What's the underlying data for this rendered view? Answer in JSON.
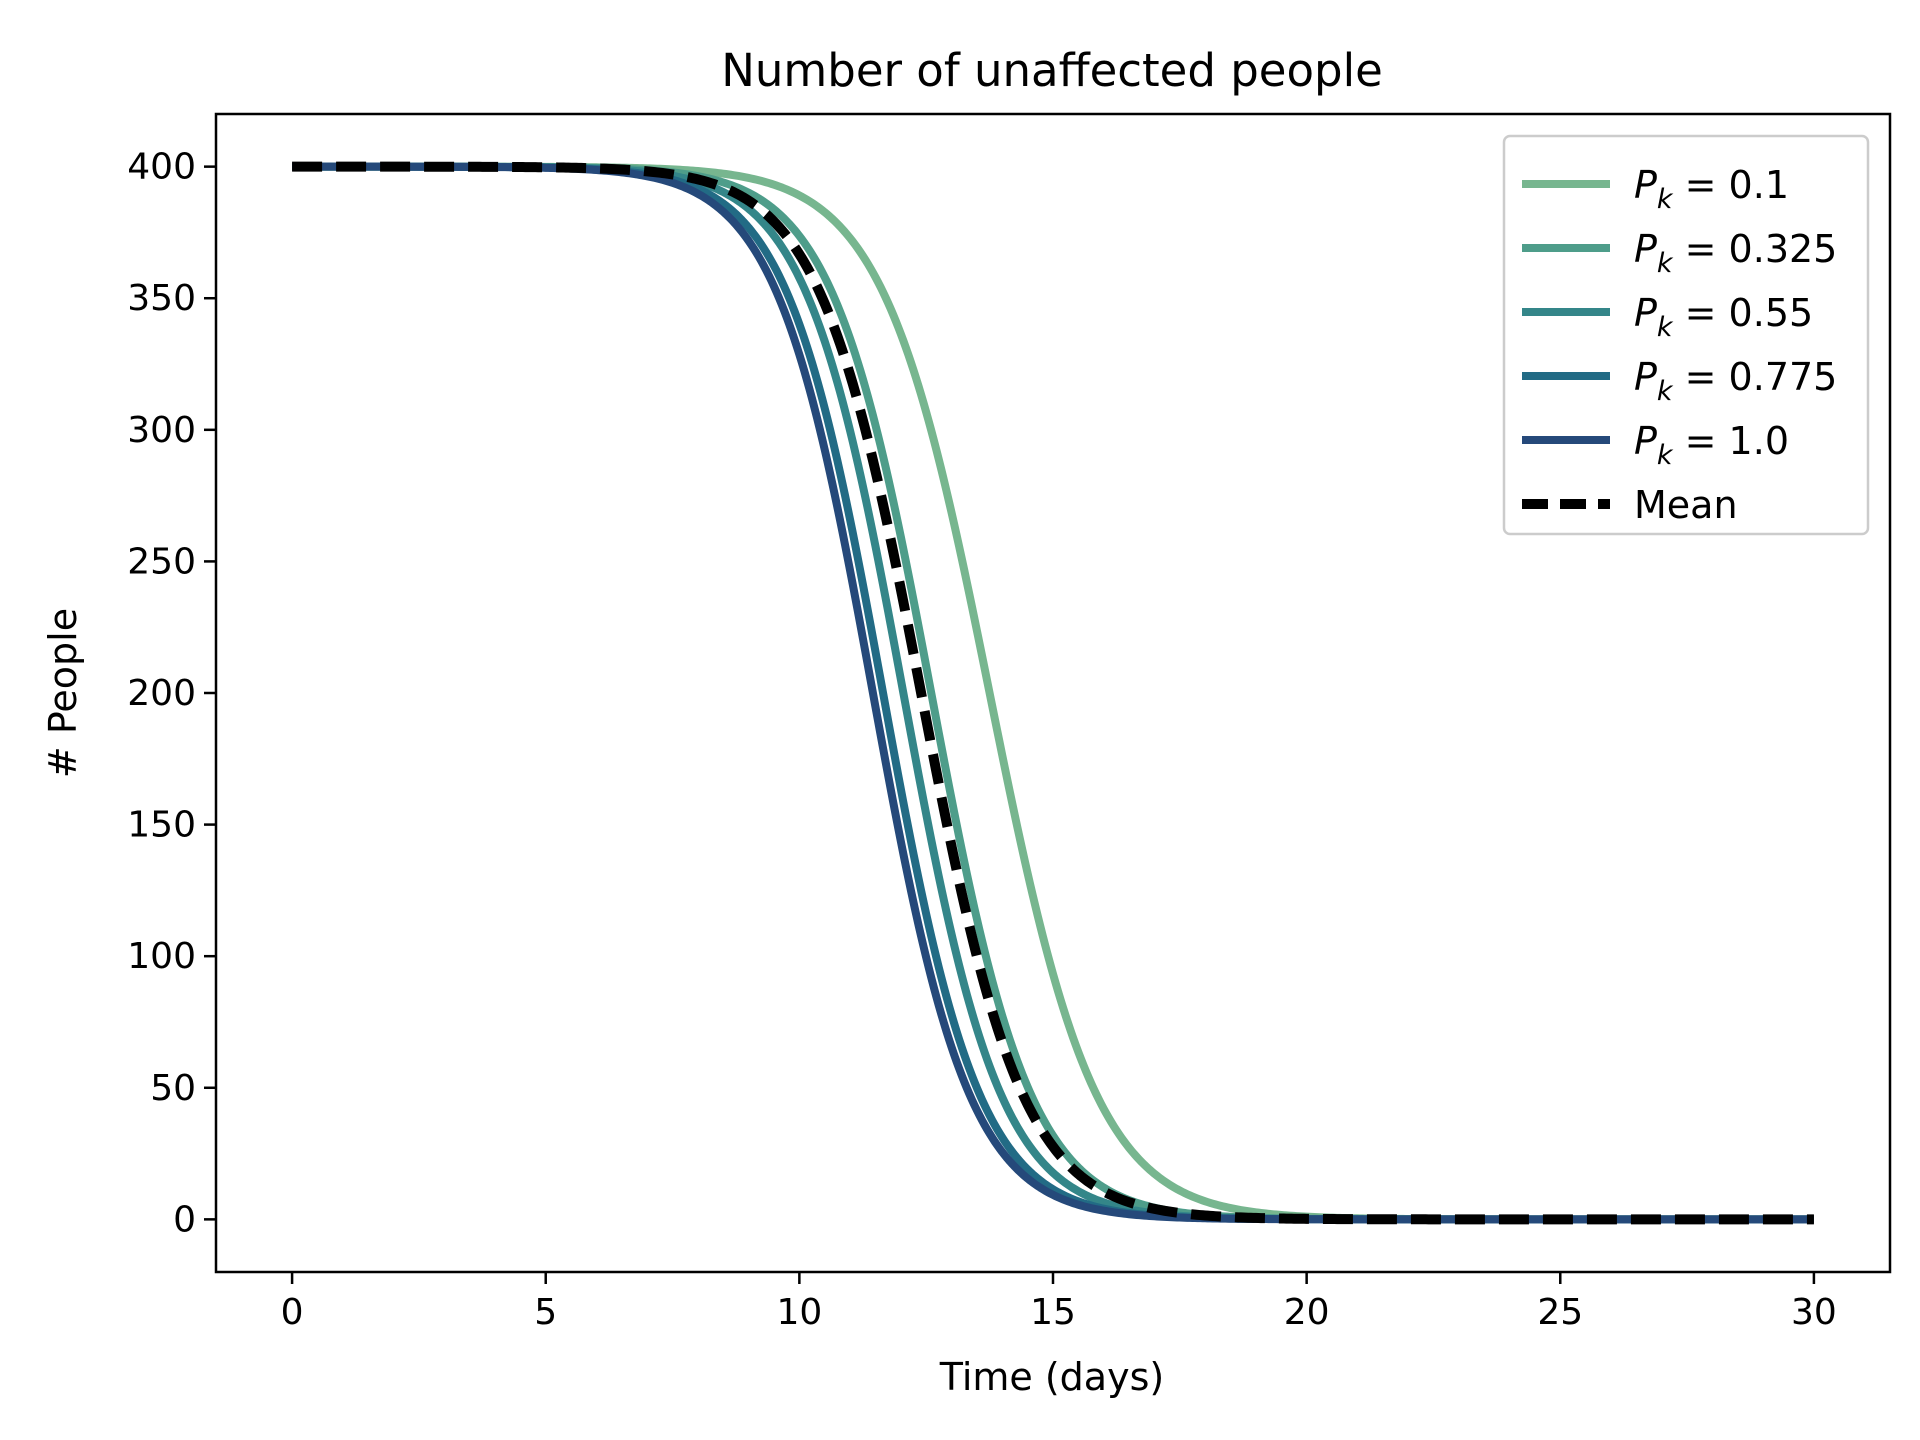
{
  "chart_data": {
    "type": "line",
    "title": "Number of unaffected people",
    "xlabel": "Time (days)",
    "ylabel": "# People",
    "xlim": [
      -1.5,
      31.5
    ],
    "ylim": [
      -20,
      420
    ],
    "xticks": [
      0,
      5,
      10,
      15,
      20,
      25,
      30
    ],
    "yticks": [
      0,
      50,
      100,
      150,
      200,
      250,
      300,
      350,
      400
    ],
    "grid": false,
    "legend_position": "top-right",
    "series": [
      {
        "name": "Pk = 0.1",
        "legend_sym": "P",
        "legend_sub": "k",
        "legend_val": " = 0.1",
        "color": "#77b68f",
        "dashed": false,
        "N": 400,
        "t_mid": 13.75,
        "scale": 1.05,
        "x_start": 0,
        "x_end": 30
      },
      {
        "name": "Pk = 0.325",
        "legend_sym": "P",
        "legend_sub": "k",
        "legend_val": " = 0.325",
        "color": "#4e9d8a",
        "dashed": false,
        "N": 400,
        "t_mid": 12.6,
        "scale": 0.98,
        "x_start": 0,
        "x_end": 30
      },
      {
        "name": "Pk = 0.55",
        "legend_sym": "P",
        "legend_sub": "k",
        "legend_val": " = 0.55",
        "color": "#348689",
        "dashed": false,
        "N": 400,
        "t_mid": 12.05,
        "scale": 0.96,
        "x_start": 0,
        "x_end": 30
      },
      {
        "name": "Pk = 0.775",
        "legend_sym": "P",
        "legend_sub": "k",
        "legend_val": " = 0.775",
        "color": "#226b85",
        "dashed": false,
        "N": 400,
        "t_mid": 11.65,
        "scale": 0.95,
        "x_start": 0,
        "x_end": 30
      },
      {
        "name": "Pk = 1.0",
        "legend_sym": "P",
        "legend_sub": "k",
        "legend_val": " = 1.0",
        "color": "#25497a",
        "dashed": false,
        "N": 400,
        "t_mid": 11.45,
        "scale": 0.95,
        "x_start": 0,
        "x_end": 30
      },
      {
        "name": "Mean",
        "legend_label": "Mean",
        "color": "#000000",
        "dashed": true,
        "N": 400,
        "t_mid": 12.4,
        "scale": 1.0,
        "x_start": 0,
        "x_end": 30
      }
    ]
  }
}
